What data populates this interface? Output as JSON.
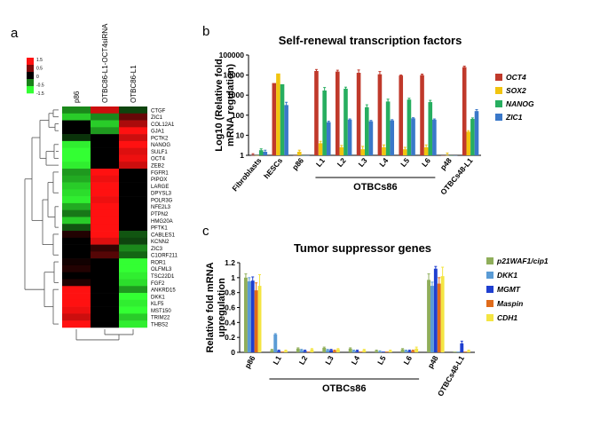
{
  "panel_labels": [
    "a",
    "b",
    "c"
  ],
  "chart_data": [
    {
      "type": "heatmap",
      "panel": "a",
      "columns": [
        "p86",
        "OTBC86-L1-OCT4siRNA",
        "OTBC86-L1"
      ],
      "rows": [
        "CTGF",
        "ZIC1",
        "COL12A1",
        "GJA1",
        "PCTK2",
        "NANOG",
        "SULF1",
        "OCT4",
        "ZEB2",
        "FGFR1",
        "PIPOX",
        "LARGE",
        "DPYSL3",
        "POLR3G",
        "NFE2L3",
        "PTPN2",
        "HMG20A",
        "PFTK1",
        "CABLES1",
        "KCNN2",
        "ZIC3",
        "C1ORF211",
        "ROR1",
        "OLFML3",
        "TSC22D1",
        "FGF2",
        "ANKRD15",
        "DKK1",
        "KLF5",
        "MST150",
        "TRIM22",
        "THBS2"
      ],
      "values": [
        [
          -0.8,
          1.2,
          -0.4
        ],
        [
          -1.2,
          -0.8,
          0.6
        ],
        [
          0.0,
          -1.2,
          1.0
        ],
        [
          0.0,
          -0.9,
          1.5
        ],
        [
          -0.3,
          0.0,
          1.2
        ],
        [
          -1.4,
          0.0,
          1.5
        ],
        [
          -1.5,
          0.0,
          1.3
        ],
        [
          -1.5,
          0.0,
          1.4
        ],
        [
          -1.4,
          0.0,
          1.2
        ],
        [
          -0.9,
          1.5,
          0.0
        ],
        [
          -1.0,
          1.4,
          0.0
        ],
        [
          -1.2,
          1.5,
          0.0
        ],
        [
          -1.3,
          1.5,
          0.0
        ],
        [
          -1.4,
          1.4,
          0.0
        ],
        [
          -1.0,
          1.5,
          0.0
        ],
        [
          -0.7,
          1.5,
          0.0
        ],
        [
          -1.2,
          1.5,
          0.0
        ],
        [
          -0.5,
          1.5,
          0.0
        ],
        [
          0.2,
          1.5,
          -0.5
        ],
        [
          0.0,
          1.3,
          -0.4
        ],
        [
          0.0,
          0.3,
          -0.8
        ],
        [
          0.0,
          0.5,
          -0.6
        ],
        [
          0.1,
          0.0,
          -1.5
        ],
        [
          0.2,
          0.0,
          -1.5
        ],
        [
          0.0,
          0.0,
          -1.4
        ],
        [
          0.2,
          0.0,
          -1.3
        ],
        [
          1.5,
          0.0,
          -0.9
        ],
        [
          1.5,
          0.0,
          -1.5
        ],
        [
          1.5,
          0.0,
          -1.4
        ],
        [
          1.4,
          0.0,
          -1.5
        ],
        [
          1.2,
          0.0,
          -1.2
        ],
        [
          1.5,
          0.0,
          -1.4
        ]
      ],
      "color_scale": {
        "ticks": [
          1.5,
          0.5,
          0,
          -0.5,
          -1.5
        ],
        "low": "#33ff33",
        "mid": "#000000",
        "high": "#ff1111"
      }
    },
    {
      "type": "bar",
      "panel": "b",
      "title": "Self-renewal transcription factors",
      "ylabel_lines": [
        "Log10 (Relative fold",
        "mRNA regulation)"
      ],
      "yscale": "log",
      "ylim": [
        1,
        100000
      ],
      "yticks": [
        "1",
        "10",
        "100",
        "1000",
        "10000",
        "100000"
      ],
      "categories": [
        "Fibroblasts",
        "hESCs",
        "p86",
        "L1",
        "L2",
        "L3",
        "L4",
        "L5",
        "L6",
        "p48",
        "OTBCs48-L1"
      ],
      "group_label": "OTBCs86",
      "series": [
        {
          "name": "OCT4",
          "color": "#c0392b",
          "values": [
            1,
            4000,
            1,
            16000,
            15000,
            13000,
            11000,
            9500,
            10000,
            1,
            25000
          ],
          "errors": [
            0.2,
            0,
            0,
            3000,
            2500,
            5000,
            4000,
            600,
            1200,
            0,
            3000
          ]
        },
        {
          "name": "SOX2",
          "color": "#f1c40f",
          "values": [
            1,
            12000,
            1.5,
            4,
            2.5,
            2,
            2.5,
            2,
            2.5,
            1,
            15
          ],
          "errors": [
            0,
            0,
            0.3,
            1,
            0.6,
            0.8,
            0.8,
            0.5,
            0.8,
            0.3,
            2
          ]
        },
        {
          "name": "NANOG",
          "color": "#27ae60",
          "values": [
            1.8,
            3500,
            1,
            1700,
            2100,
            250,
            480,
            600,
            450,
            1,
            65
          ],
          "errors": [
            0.3,
            0,
            0,
            700,
            400,
            80,
            150,
            100,
            100,
            0,
            8
          ]
        },
        {
          "name": "ZIC1",
          "color": "#3a78c9",
          "values": [
            1.5,
            320,
            1,
            45,
            60,
            50,
            55,
            70,
            60,
            1,
            160
          ],
          "errors": [
            0.3,
            120,
            0,
            5,
            5,
            5,
            5,
            5,
            5,
            0,
            30
          ]
        }
      ]
    },
    {
      "type": "bar",
      "panel": "c",
      "title": "Tumor suppressor genes",
      "ylabel_lines": [
        "Relative fold mRNA",
        "upregulation"
      ],
      "ylim": [
        0,
        1.2
      ],
      "yticks": [
        "0",
        "0.2",
        "0.4",
        "0.6",
        "0.8",
        "1",
        "1.2"
      ],
      "categories": [
        "p86",
        "L1",
        "L2",
        "L3",
        "L4",
        "L5",
        "L6",
        "p48",
        "OTBCs48-L1"
      ],
      "group_label": "OTBCs86",
      "series": [
        {
          "name": "p21WAF1/cip1",
          "color": "#8fae5a",
          "values": [
            1.0,
            0.03,
            0.05,
            0.06,
            0.05,
            0.02,
            0.04,
            0.97,
            0.01
          ],
          "errors": [
            0.05,
            0.01,
            0.01,
            0.01,
            0.01,
            0.01,
            0.01,
            0.08,
            0.0
          ]
        },
        {
          "name": "DKK1",
          "color": "#5a9bd5",
          "values": [
            0.95,
            0.24,
            0.03,
            0.03,
            0.02,
            0.01,
            0.02,
            0.89,
            0.01
          ],
          "errors": [
            0.05,
            0.01,
            0.01,
            0.01,
            0.01,
            0.01,
            0.01,
            0.05,
            0.0
          ]
        },
        {
          "name": "MGMT",
          "color": "#1f3fd0",
          "values": [
            0.96,
            0.02,
            0.02,
            0.03,
            0.02,
            0.01,
            0.02,
            1.12,
            0.12
          ],
          "errors": [
            0.05,
            0.01,
            0.01,
            0.01,
            0.01,
            0.0,
            0.01,
            0.03,
            0.03
          ]
        },
        {
          "name": "Maspin",
          "color": "#e06b1a",
          "values": [
            0.83,
            0.01,
            0.01,
            0.02,
            0.01,
            0.01,
            0.02,
            0.92,
            0.01
          ],
          "errors": [
            0.1,
            0.0,
            0.0,
            0.01,
            0.0,
            0.0,
            0.01,
            0.08,
            0.0
          ]
        },
        {
          "name": "CDH1",
          "color": "#f4e542",
          "values": [
            0.89,
            0.02,
            0.04,
            0.04,
            0.03,
            0.02,
            0.05,
            1.02,
            0.02
          ],
          "errors": [
            0.15,
            0.01,
            0.01,
            0.01,
            0.01,
            0.01,
            0.02,
            0.12,
            0.01
          ]
        }
      ]
    }
  ]
}
